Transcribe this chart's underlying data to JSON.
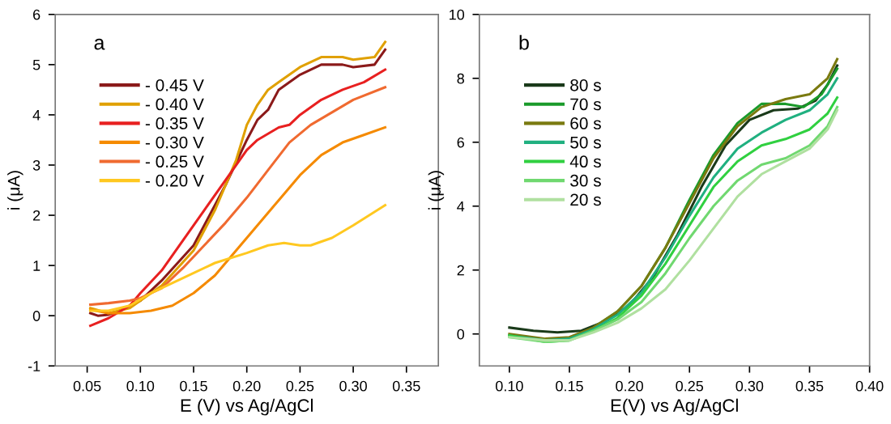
{
  "chart_data": [
    {
      "type": "line",
      "xlabel": "E (V) vs Ag/AgCl",
      "ylabel": "i (μA)",
      "annotations": [
        "a"
      ],
      "xlim": [
        0.02,
        0.38
      ],
      "xticks": [
        0.05,
        {
          "value": 0.1,
          "label": "0.10"
        },
        0.15,
        {
          "value": 0.2,
          "label": "0.20"
        },
        0.25,
        {
          "value": 0.3,
          "label": "0.30"
        },
        0.35
      ],
      "ylim": [
        -1,
        6
      ],
      "yticks": [
        -1,
        0,
        1,
        2,
        3,
        4,
        5,
        6
      ],
      "legend": "top left",
      "grid": false,
      "series": [
        {
          "name": "- 0.45 V",
          "color": "#8b1a1a",
          "x": [
            0.053,
            0.06,
            0.07,
            0.08,
            0.1,
            0.12,
            0.15,
            0.17,
            0.18,
            0.2,
            0.21,
            0.22,
            0.23,
            0.25,
            0.27,
            0.29,
            0.3,
            0.32,
            0.33
          ],
          "values": [
            0.05,
            0.0,
            0.02,
            0.1,
            0.3,
            0.7,
            1.4,
            2.2,
            2.6,
            3.5,
            3.9,
            4.1,
            4.5,
            4.8,
            5.0,
            5.0,
            4.95,
            5.0,
            5.3
          ]
        },
        {
          "name": "- 0.40 V",
          "color": "#e0a000",
          "x": [
            0.053,
            0.07,
            0.09,
            0.1,
            0.12,
            0.15,
            0.17,
            0.19,
            0.2,
            0.21,
            0.22,
            0.23,
            0.25,
            0.27,
            0.29,
            0.3,
            0.32,
            0.33
          ],
          "values": [
            0.15,
            0.05,
            0.15,
            0.3,
            0.6,
            1.3,
            2.1,
            3.1,
            3.8,
            4.2,
            4.5,
            4.65,
            4.95,
            5.15,
            5.15,
            5.1,
            5.15,
            5.45
          ]
        },
        {
          "name": "- 0.35 V",
          "color": "#e82020",
          "x": [
            0.053,
            0.07,
            0.09,
            0.1,
            0.12,
            0.14,
            0.16,
            0.18,
            0.2,
            0.21,
            0.23,
            0.24,
            0.25,
            0.27,
            0.29,
            0.31,
            0.33
          ],
          "values": [
            -0.2,
            -0.05,
            0.2,
            0.45,
            0.9,
            1.5,
            2.1,
            2.7,
            3.3,
            3.5,
            3.75,
            3.8,
            4.0,
            4.3,
            4.5,
            4.65,
            4.9
          ]
        },
        {
          "name": "- 0.30 V",
          "color": "#f58a00",
          "x": [
            0.053,
            0.07,
            0.09,
            0.11,
            0.13,
            0.15,
            0.17,
            0.19,
            0.21,
            0.23,
            0.25,
            0.27,
            0.29,
            0.31,
            0.33
          ],
          "values": [
            0.12,
            0.05,
            0.05,
            0.1,
            0.2,
            0.45,
            0.8,
            1.3,
            1.8,
            2.3,
            2.8,
            3.2,
            3.45,
            3.6,
            3.75
          ]
        },
        {
          "name": "- 0.25 V",
          "color": "#f06a30",
          "x": [
            0.053,
            0.07,
            0.09,
            0.1,
            0.12,
            0.14,
            0.16,
            0.18,
            0.2,
            0.22,
            0.24,
            0.26,
            0.28,
            0.3,
            0.33
          ],
          "values": [
            0.22,
            0.25,
            0.3,
            0.35,
            0.55,
            0.95,
            1.4,
            1.85,
            2.35,
            2.9,
            3.45,
            3.8,
            4.05,
            4.3,
            4.55
          ]
        },
        {
          "name": "- 0.20 V",
          "color": "#ffc820",
          "x": [
            0.053,
            0.07,
            0.09,
            0.11,
            0.14,
            0.17,
            0.2,
            0.22,
            0.235,
            0.25,
            0.26,
            0.28,
            0.3,
            0.33
          ],
          "values": [
            0.1,
            0.1,
            0.2,
            0.45,
            0.75,
            1.05,
            1.25,
            1.4,
            1.45,
            1.4,
            1.4,
            1.55,
            1.8,
            2.2
          ]
        }
      ]
    },
    {
      "type": "line",
      "xlabel": "E(V) vs Ag/AgCl",
      "ylabel": "i (μA)",
      "annotations": [
        "b"
      ],
      "xlim": [
        0.075,
        0.4
      ],
      "xticks": [
        {
          "value": 0.1,
          "label": "0.10"
        },
        0.15,
        {
          "value": 0.2,
          "label": "0.20"
        },
        0.25,
        {
          "value": 0.3,
          "label": "0.30"
        },
        0.35,
        {
          "value": 0.4,
          "label": "0.40"
        }
      ],
      "ylim": [
        -1,
        10
      ],
      "yticks": [
        0,
        2,
        4,
        6,
        8,
        10
      ],
      "legend": "top left",
      "grid": false,
      "series": [
        {
          "name": "80 s",
          "color": "#1a3a1a",
          "x": [
            0.1,
            0.12,
            0.14,
            0.16,
            0.18,
            0.2,
            0.22,
            0.24,
            0.26,
            0.28,
            0.3,
            0.32,
            0.34,
            0.355,
            0.365,
            0.373
          ],
          "values": [
            0.2,
            0.1,
            0.05,
            0.1,
            0.4,
            0.9,
            1.8,
            3.1,
            4.6,
            5.9,
            6.7,
            7.0,
            7.05,
            7.3,
            7.8,
            8.4
          ]
        },
        {
          "name": "70 s",
          "color": "#1a9a2a",
          "x": [
            0.1,
            0.13,
            0.15,
            0.17,
            0.19,
            0.21,
            0.23,
            0.25,
            0.27,
            0.29,
            0.31,
            0.33,
            0.345,
            0.36,
            0.373
          ],
          "values": [
            -0.05,
            -0.2,
            -0.15,
            0.2,
            0.7,
            1.5,
            2.7,
            4.2,
            5.6,
            6.6,
            7.2,
            7.2,
            7.1,
            7.5,
            8.3
          ]
        },
        {
          "name": "60 s",
          "color": "#7a7a10",
          "x": [
            0.1,
            0.13,
            0.15,
            0.17,
            0.19,
            0.21,
            0.23,
            0.25,
            0.27,
            0.29,
            0.31,
            0.33,
            0.35,
            0.365,
            0.373
          ],
          "values": [
            0.0,
            -0.15,
            -0.1,
            0.2,
            0.7,
            1.5,
            2.7,
            4.1,
            5.5,
            6.5,
            7.1,
            7.35,
            7.5,
            8.0,
            8.6
          ]
        },
        {
          "name": "50 s",
          "color": "#20b080",
          "x": [
            0.1,
            0.13,
            0.15,
            0.17,
            0.19,
            0.21,
            0.23,
            0.25,
            0.27,
            0.29,
            0.31,
            0.33,
            0.35,
            0.365,
            0.373
          ],
          "values": [
            -0.05,
            -0.2,
            -0.15,
            0.15,
            0.6,
            1.3,
            2.4,
            3.7,
            4.9,
            5.8,
            6.3,
            6.7,
            7.0,
            7.5,
            8.0
          ]
        },
        {
          "name": "40 s",
          "color": "#30d040",
          "x": [
            0.1,
            0.13,
            0.15,
            0.17,
            0.19,
            0.21,
            0.23,
            0.25,
            0.27,
            0.29,
            0.31,
            0.33,
            0.35,
            0.365,
            0.373
          ],
          "values": [
            -0.05,
            -0.25,
            -0.2,
            0.1,
            0.5,
            1.2,
            2.2,
            3.4,
            4.6,
            5.4,
            5.9,
            6.1,
            6.4,
            6.9,
            7.4
          ]
        },
        {
          "name": "30 s",
          "color": "#70d870",
          "x": [
            0.1,
            0.13,
            0.15,
            0.17,
            0.19,
            0.21,
            0.23,
            0.25,
            0.27,
            0.29,
            0.31,
            0.33,
            0.35,
            0.365,
            0.373
          ],
          "values": [
            -0.1,
            -0.25,
            -0.2,
            0.1,
            0.45,
            1.0,
            1.9,
            3.0,
            4.0,
            4.8,
            5.3,
            5.5,
            5.9,
            6.5,
            7.1
          ]
        },
        {
          "name": "20 s",
          "color": "#b0e0a0",
          "x": [
            0.1,
            0.13,
            0.15,
            0.17,
            0.19,
            0.21,
            0.23,
            0.25,
            0.27,
            0.29,
            0.31,
            0.33,
            0.35,
            0.365,
            0.373
          ],
          "values": [
            -0.1,
            -0.2,
            -0.2,
            0.05,
            0.35,
            0.8,
            1.4,
            2.3,
            3.3,
            4.3,
            5.0,
            5.4,
            5.8,
            6.4,
            7.0
          ]
        }
      ]
    }
  ]
}
